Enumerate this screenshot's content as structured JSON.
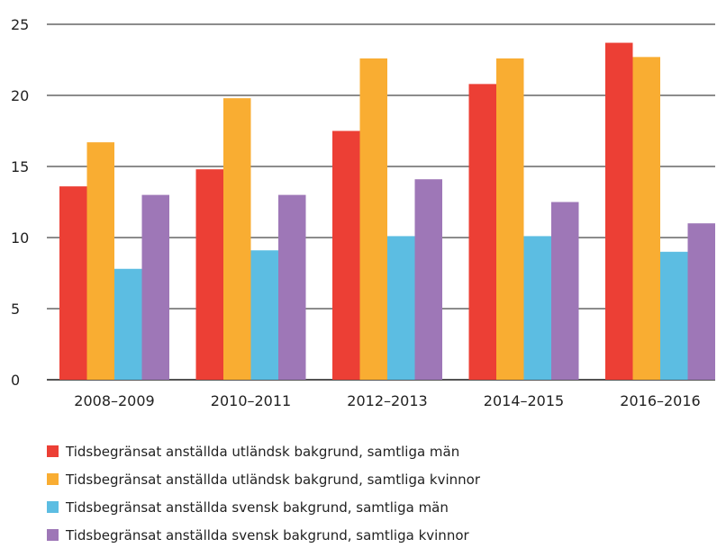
{
  "chart_data": {
    "type": "bar",
    "categories": [
      "2008–2009",
      "2010–2011",
      "2012–2013",
      "2014–2015",
      "2016–2016"
    ],
    "series": [
      {
        "name": "Tidsbegränsat anställda utländsk bakgrund, samtliga män",
        "color": "#ec3f35",
        "values": [
          13.6,
          14.8,
          17.5,
          20.8,
          23.7
        ]
      },
      {
        "name": "Tidsbegränsat anställda utländsk bakgrund, samtliga kvinnor",
        "color": "#f9ad32",
        "values": [
          16.7,
          19.8,
          22.6,
          22.6,
          22.7
        ]
      },
      {
        "name": "Tidsbegränsat anställda svensk bakgrund, samtliga män",
        "color": "#5cbde2",
        "values": [
          7.8,
          9.1,
          10.1,
          10.1,
          9.0
        ]
      },
      {
        "name": "Tidsbegränsat anställda svensk bakgrund, samtliga kvinnor",
        "color": "#9e77b7",
        "values": [
          13.0,
          13.0,
          14.1,
          12.5,
          11.0
        ]
      }
    ],
    "yticks": [
      "0",
      "5",
      "10",
      "15",
      "20",
      "25"
    ],
    "ylim": [
      0,
      25
    ],
    "grid": true,
    "legend_position": "bottom"
  }
}
